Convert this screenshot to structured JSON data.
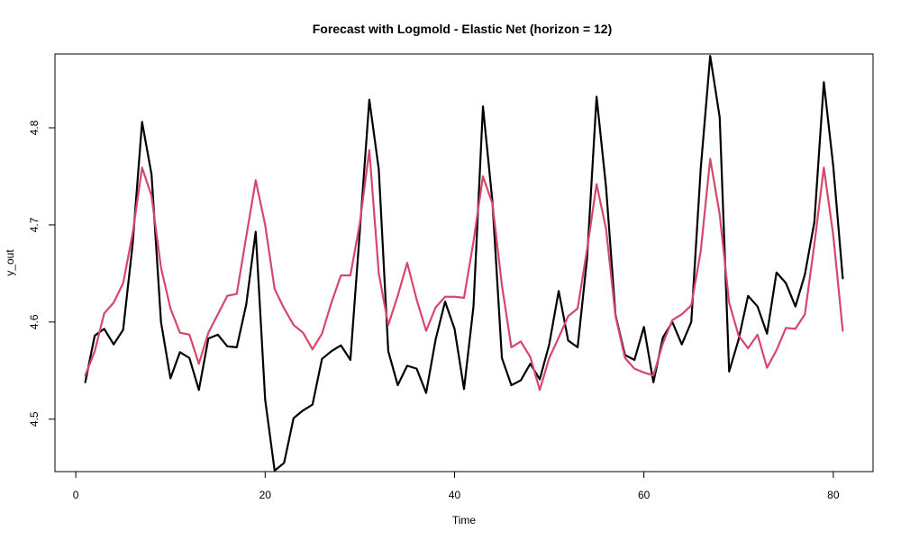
{
  "chart_data": {
    "type": "line",
    "title": "Forecast with Logmold - Elastic Net (horizon = 12)",
    "xlabel": "Time",
    "ylabel": "y_out",
    "xlim": [
      -2.2,
      84.2
    ],
    "ylim": [
      4.446,
      4.876
    ],
    "xticks": [
      0,
      20,
      40,
      60,
      80
    ],
    "yticks": [
      4.5,
      4.6,
      4.7,
      4.8
    ],
    "grid": false,
    "legend": "none",
    "x": [
      1,
      2,
      3,
      4,
      5,
      6,
      7,
      8,
      9,
      10,
      11,
      12,
      13,
      14,
      15,
      16,
      17,
      18,
      19,
      20,
      21,
      22,
      23,
      24,
      25,
      26,
      27,
      28,
      29,
      30,
      31,
      32,
      33,
      34,
      35,
      36,
      37,
      38,
      39,
      40,
      41,
      42,
      43,
      44,
      45,
      46,
      47,
      48,
      49,
      50,
      51,
      52,
      53,
      54,
      55,
      56,
      57,
      58,
      59,
      60,
      61,
      62,
      63,
      64,
      65,
      66,
      67,
      68,
      69,
      70,
      71,
      72,
      73,
      74,
      75,
      76,
      77,
      78,
      79,
      80,
      81
    ],
    "series": [
      {
        "color": "#000000",
        "values": [
          4.538,
          4.586,
          4.593,
          4.577,
          4.592,
          4.68,
          4.806,
          4.752,
          4.6,
          4.542,
          4.569,
          4.563,
          4.53,
          4.583,
          4.587,
          4.575,
          4.574,
          4.618,
          4.693,
          4.52,
          4.447,
          4.455,
          4.501,
          4.509,
          4.515,
          4.562,
          4.57,
          4.576,
          4.561,
          4.694,
          4.829,
          4.757,
          4.57,
          4.535,
          4.555,
          4.552,
          4.527,
          4.582,
          4.621,
          4.593,
          4.531,
          4.616,
          4.822,
          4.724,
          4.563,
          4.535,
          4.54,
          4.557,
          4.541,
          4.577,
          4.632,
          4.581,
          4.574,
          4.666,
          4.832,
          4.739,
          4.607,
          4.566,
          4.561,
          4.595,
          4.538,
          4.584,
          4.6,
          4.577,
          4.6,
          4.758,
          4.874,
          4.811,
          4.549,
          4.582,
          4.627,
          4.616,
          4.588,
          4.651,
          4.64,
          4.616,
          4.649,
          4.703,
          4.847,
          4.76,
          4.645
        ]
      },
      {
        "color": "#D6476C",
        "values": [
          4.545,
          4.57,
          4.609,
          4.62,
          4.64,
          4.691,
          4.759,
          4.73,
          4.656,
          4.614,
          4.589,
          4.587,
          4.557,
          4.589,
          4.608,
          4.627,
          4.629,
          4.688,
          4.746,
          4.7,
          4.634,
          4.614,
          4.597,
          4.589,
          4.572,
          4.588,
          4.62,
          4.648,
          4.648,
          4.702,
          4.777,
          4.65,
          4.597,
          4.627,
          4.661,
          4.623,
          4.591,
          4.615,
          4.626,
          4.626,
          4.625,
          4.683,
          4.75,
          4.722,
          4.638,
          4.574,
          4.58,
          4.564,
          4.53,
          4.563,
          4.584,
          4.606,
          4.614,
          4.675,
          4.742,
          4.696,
          4.606,
          4.563,
          4.552,
          4.548,
          4.545,
          4.578,
          4.602,
          4.608,
          4.617,
          4.673,
          4.768,
          4.711,
          4.62,
          4.586,
          4.573,
          4.587,
          4.553,
          4.571,
          4.594,
          4.593,
          4.608,
          4.68,
          4.759,
          4.689,
          4.591
        ]
      }
    ]
  }
}
